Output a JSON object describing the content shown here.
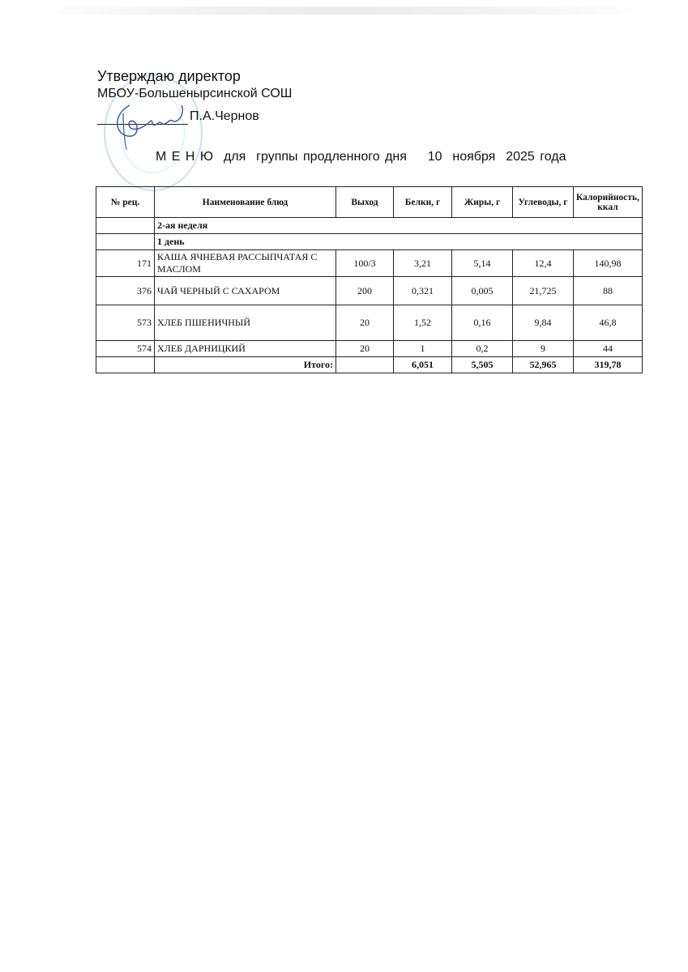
{
  "approval": {
    "line1": "Утверждаю директор",
    "line2": "МБОУ-Большенырсинской СОШ",
    "signatory": "П.А.Чернов"
  },
  "title": "М Е Н Ю  для  группы продленного дня    10  ноября  2025 года",
  "table": {
    "headers": [
      "№ рец.",
      "Наименование блюд",
      "Выход",
      "Белки, г",
      "Жиры, г",
      "Углеводы, г",
      "Калорийность, ккал"
    ],
    "week": "2-ая неделя",
    "day": "1 день",
    "rows": [
      {
        "code": "171",
        "name": "КАША ЯЧНЕВАЯ  РАССЫПЧАТАЯ С МАСЛОМ",
        "yield": "100/3",
        "protein": "3,21",
        "fat": "5,14",
        "carbs": "12,4",
        "kcal": "140,98"
      },
      {
        "code": "376",
        "name": "ЧАЙ ЧЕРНЫЙ С САХАРОМ",
        "yield": "200",
        "protein": "0,321",
        "fat": "0,005",
        "carbs": "21,725",
        "kcal": "88"
      },
      {
        "code": "573",
        "name": "ХЛЕБ ПШЕНИЧНЫЙ",
        "yield": "20",
        "protein": "1,52",
        "fat": "0,16",
        "carbs": "9,84",
        "kcal": "46,8"
      },
      {
        "code": "574",
        "name": "ХЛЕБ ДАРНИЦКИЙ",
        "yield": "20",
        "protein": "1",
        "fat": "0,2",
        "carbs": "9",
        "kcal": "44"
      }
    ],
    "total": {
      "label": "Итого:",
      "protein": "6,051",
      "fat": "5,505",
      "carbs": "52,965",
      "kcal": "319,78"
    }
  },
  "colors": {
    "stamp": "#9fc6e4",
    "signature": "#3a5aa8"
  }
}
